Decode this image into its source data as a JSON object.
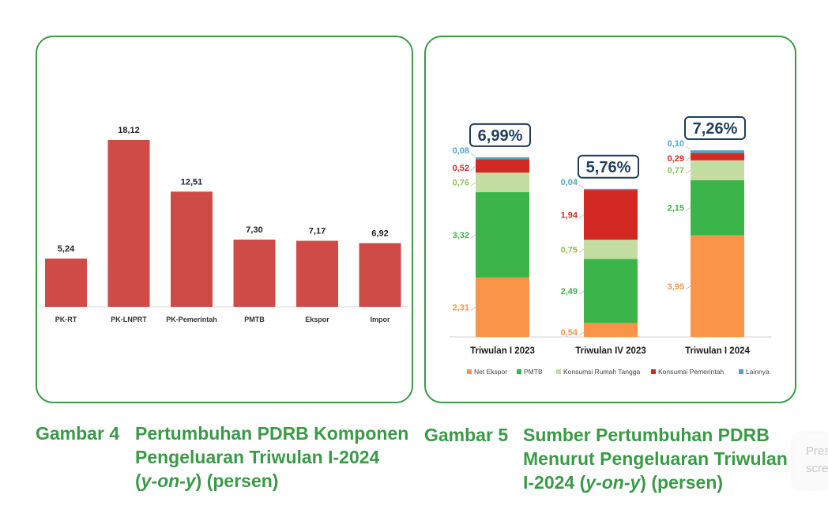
{
  "colors": {
    "frame": "#3a9a47",
    "caption": "#3a9a47",
    "bar": "#cf4b47",
    "net_ekspor": "#fa9448",
    "pmtb": "#3bb54a",
    "konsumsi_rt": "#c4dea1",
    "konsumsi_pemerintah": "#d22a22",
    "lainnya": "#4aa8cf",
    "total_box": "#1f3d5c"
  },
  "chart_data": [
    {
      "type": "bar",
      "categories": [
        "PK-RT",
        "PK-LNPRT",
        "PK-Pemerintah",
        "PMTB",
        "Ekspor",
        "Impor"
      ],
      "values": [
        5.24,
        18.12,
        12.51,
        7.3,
        7.17,
        6.92
      ],
      "labels": [
        "5,24",
        "18,12",
        "12,51",
        "7,30",
        "7,17",
        "6,92"
      ],
      "ylim": [
        0,
        20
      ],
      "grid": false,
      "legend": "none"
    },
    {
      "type": "bar",
      "stacked": true,
      "categories": [
        "Triwulan I 2023",
        "Triwulan IV 2023",
        "Triwulan I 2024"
      ],
      "totals": [
        "6,99%",
        "5,76%",
        "7,26%"
      ],
      "series": [
        {
          "name": "Net Ekspor",
          "color_key": "net_ekspor",
          "values": [
            2.31,
            0.54,
            3.95
          ],
          "labels": [
            "2,31",
            "0,54",
            "3,95"
          ]
        },
        {
          "name": "PMTB",
          "color_key": "pmtb",
          "values": [
            3.32,
            2.49,
            2.15
          ],
          "labels": [
            "3,32",
            "2,49",
            "2,15"
          ]
        },
        {
          "name": "Konsumsi Rumah Tangga",
          "color_key": "konsumsi_rt",
          "values": [
            0.76,
            0.75,
            0.77
          ],
          "labels": [
            "0,76",
            "0,75",
            "0,77"
          ]
        },
        {
          "name": "Konsumsi Pemerintah",
          "color_key": "konsumsi_pemerintah",
          "values": [
            0.52,
            1.94,
            0.29
          ],
          "labels": [
            "0,52",
            "1,94",
            "0,29"
          ]
        },
        {
          "name": "Lainnya",
          "color_key": "lainnya",
          "values": [
            0.08,
            0.04,
            0.1
          ],
          "labels": [
            "0,08",
            "0,04",
            "0,10"
          ]
        }
      ],
      "ylim": [
        0,
        7.5
      ],
      "grid": false,
      "legend": "bottom"
    }
  ],
  "captions": {
    "left": {
      "label": "Gambar 4",
      "line1": "Pertumbuhan PDRB Komponen",
      "line2": "Pengeluaran Triwulan I-2024",
      "line3_open": "(",
      "line3_italic": "y-on-y",
      "line3_close": ") (persen)"
    },
    "right": {
      "label": "Gambar 5",
      "line1": "Sumber Pertumbuhan PDRB",
      "line2": "Menurut Pengeluaran Triwulan",
      "line3_open": "I-2024 (",
      "line3_italic": "y-on-y",
      "line3_close": ") (persen)"
    }
  },
  "overlay": {
    "line1": "Press",
    "line2": "screen"
  }
}
